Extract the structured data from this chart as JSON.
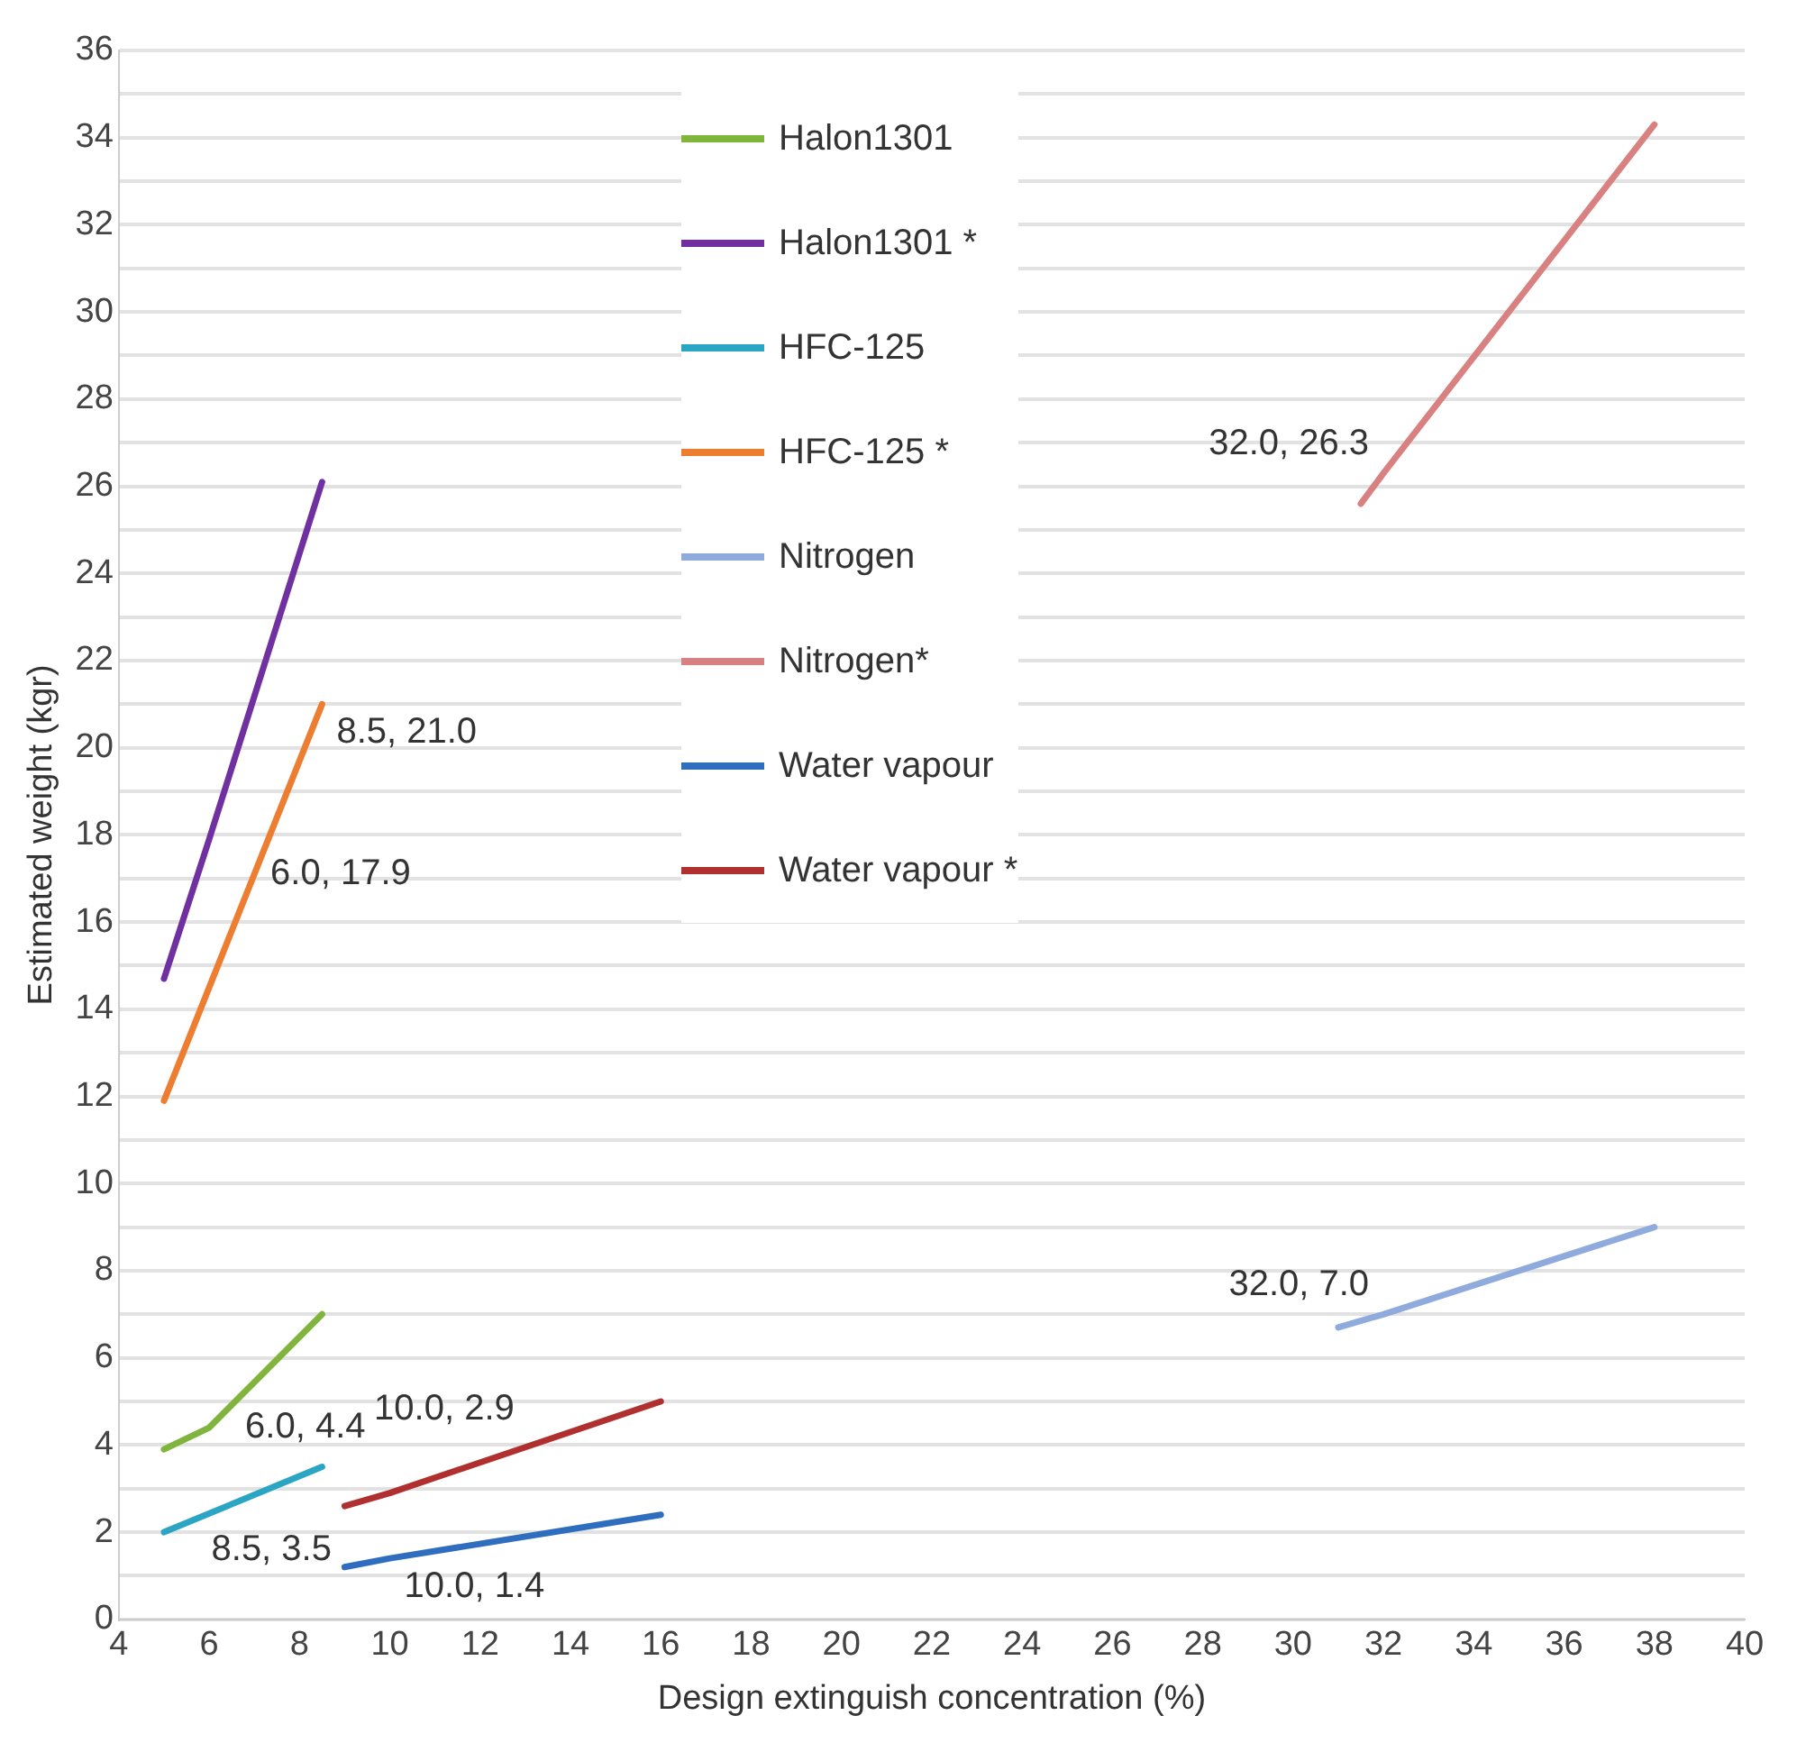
{
  "chart_data": {
    "type": "line",
    "xlabel": "Design extinguish concentration (%)",
    "ylabel": "Estimated weight (kgr)",
    "xlim": [
      4,
      40
    ],
    "xticks": [
      4,
      6,
      8,
      10,
      12,
      14,
      16,
      18,
      20,
      22,
      24,
      26,
      28,
      30,
      32,
      34,
      36,
      38,
      40
    ],
    "ylim": [
      0,
      36
    ],
    "yticks": [
      0,
      {
        "value": 1,
        "label": null
      },
      2,
      {
        "value": 3,
        "label": null
      },
      4,
      {
        "value": 5,
        "label": null
      },
      6,
      {
        "value": 7,
        "label": null
      },
      8,
      {
        "value": 9,
        "label": null
      },
      10,
      {
        "value": 11,
        "label": null
      },
      12,
      {
        "value": 13,
        "label": null
      },
      14,
      {
        "value": 15,
        "label": null
      },
      16,
      {
        "value": 17,
        "label": null
      },
      18,
      {
        "value": 19,
        "label": null
      },
      20,
      {
        "value": 21,
        "label": null
      },
      22,
      {
        "value": 23,
        "label": null
      },
      24,
      {
        "value": 25,
        "label": null
      },
      26,
      {
        "value": 27,
        "label": null
      },
      28,
      {
        "value": 29,
        "label": null
      },
      30,
      {
        "value": 31,
        "label": null
      },
      32,
      {
        "value": 33,
        "label": null
      },
      34,
      {
        "value": 35,
        "label": null
      },
      36
    ],
    "grid": "y",
    "legend": "top",
    "marker": "none",
    "line_style": "solid",
    "series": [
      {
        "name": "Halon1301",
        "color": "#7fb53c",
        "x": [
          5,
          6,
          8.5
        ],
        "values": [
          3.9,
          4.4,
          7.0
        ]
      },
      {
        "name": "Halon1301 *",
        "color": "#7030a0",
        "x": [
          5,
          6,
          8.5
        ],
        "values": [
          14.7,
          17.9,
          26.1
        ]
      },
      {
        "name": "HFC-125",
        "color": "#2aa5c4",
        "x": [
          5,
          8.5
        ],
        "values": [
          2.0,
          3.5
        ]
      },
      {
        "name": "HFC-125 *",
        "color": "#ed7d31",
        "x": [
          5,
          8.5
        ],
        "values": [
          11.9,
          21.0
        ]
      },
      {
        "name": "Nitrogen",
        "color": "#8faadc",
        "x": [
          31,
          32,
          38
        ],
        "values": [
          6.7,
          7.0,
          9.0
        ]
      },
      {
        "name": "Nitrogen*",
        "color": "#d98080",
        "x": [
          31.5,
          32,
          38
        ],
        "values": [
          25.6,
          26.3,
          34.3
        ]
      },
      {
        "name": "Water vapour",
        "color": "#2f6ebf",
        "x": [
          9,
          10,
          16
        ],
        "values": [
          1.2,
          1.4,
          2.4
        ]
      },
      {
        "name": "Water vapour *",
        "color": "#b03030",
        "x": [
          9,
          10,
          16
        ],
        "values": [
          2.6,
          2.9,
          5.0
        ]
      }
    ],
    "annotations": [
      {
        "text": "6.0, 4.4",
        "x": 6,
        "y": 4.4
      },
      {
        "text": "6.0, 17.9",
        "x": 6,
        "y": 17.9
      },
      {
        "text": "8.5, 3.5",
        "x": 8.5,
        "y": 3.5
      },
      {
        "text": "8.5, 21.0",
        "x": 8.5,
        "y": 21.0
      },
      {
        "text": "32.0, 7.0",
        "x": 32,
        "y": 7.0
      },
      {
        "text": "32.0, 26.3",
        "x": 32,
        "y": 26.3
      },
      {
        "text": "10.0, 1.4",
        "x": 10,
        "y": 1.4
      },
      {
        "text": "10.0, 2.9",
        "x": 10,
        "y": 2.9
      }
    ]
  }
}
